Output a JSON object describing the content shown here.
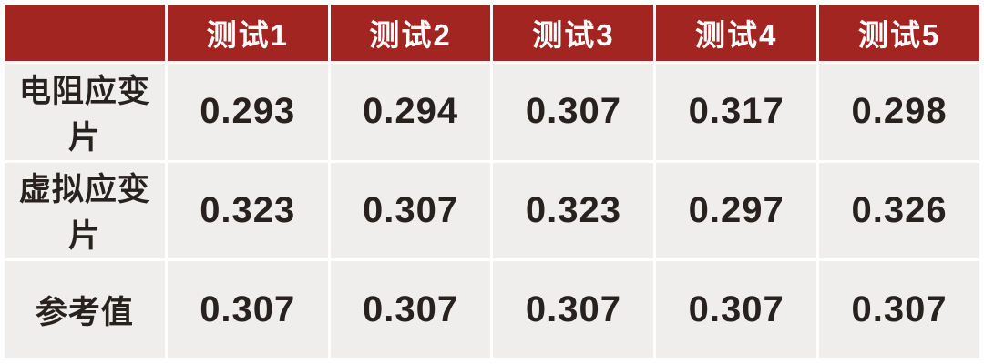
{
  "colors": {
    "header_bg": "#A32522",
    "header_text": "#FFFFFF",
    "body_bg": "#EFEEEC",
    "body_text": "#272220",
    "gutter": "#FFFFFF"
  },
  "table": {
    "corner_label": "",
    "columns": [
      "测试1",
      "测试2",
      "测试3",
      "测试4",
      "测试5"
    ],
    "rows": [
      {
        "label": "电阻应变片",
        "values": [
          "0.293",
          "0.294",
          "0.307",
          "0.317",
          "0.298"
        ]
      },
      {
        "label": "虚拟应变片",
        "values": [
          "0.323",
          "0.307",
          "0.323",
          "0.297",
          "0.326"
        ]
      },
      {
        "label": "参考值",
        "values": [
          "0.307",
          "0.307",
          "0.307",
          "0.307",
          "0.307"
        ]
      }
    ]
  },
  "chart_data": {
    "type": "table",
    "title": "",
    "categories": [
      "测试1",
      "测试2",
      "测试3",
      "测试4",
      "测试5"
    ],
    "series": [
      {
        "name": "电阻应变片",
        "values": [
          0.293,
          0.294,
          0.307,
          0.317,
          0.298
        ]
      },
      {
        "name": "虚拟应变片",
        "values": [
          0.323,
          0.307,
          0.323,
          0.297,
          0.326
        ]
      },
      {
        "name": "参考值",
        "values": [
          0.307,
          0.307,
          0.307,
          0.307,
          0.307
        ]
      }
    ]
  }
}
